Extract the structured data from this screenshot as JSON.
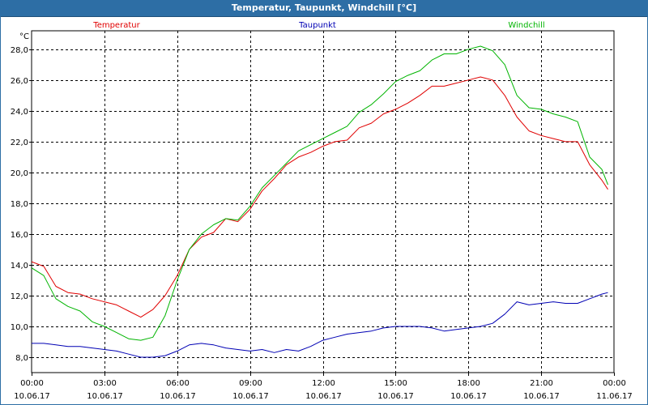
{
  "window": {
    "title": "Temperatur, Taupunkt, Windchill [°C]"
  },
  "chart_data": {
    "type": "line",
    "title": "Temperatur, Taupunkt, Windchill [°C]",
    "ylabel": "°C",
    "xlabel": "",
    "ylim": [
      7.0,
      29.2
    ],
    "xlim": [
      0,
      1440
    ],
    "grid": true,
    "y_ticks": [
      8.0,
      10.0,
      12.0,
      14.0,
      16.0,
      18.0,
      20.0,
      22.0,
      24.0,
      26.0,
      28.0
    ],
    "y_tick_labels": [
      "8,0",
      "10,0",
      "12,0",
      "14,0",
      "16,0",
      "18,0",
      "20,0",
      "22,0",
      "24,0",
      "26,0",
      "28,0"
    ],
    "x_ticks": [
      0,
      180,
      360,
      540,
      720,
      900,
      1080,
      1260,
      1440
    ],
    "x_tick_labels": [
      {
        "time": "00:00",
        "date": "10.06.17"
      },
      {
        "time": "03:00",
        "date": "10.06.17"
      },
      {
        "time": "06:00",
        "date": "10.06.17"
      },
      {
        "time": "09:00",
        "date": "10.06.17"
      },
      {
        "time": "12:00",
        "date": "10.06.17"
      },
      {
        "time": "15:00",
        "date": "10.06.17"
      },
      {
        "time": "18:00",
        "date": "10.06.17"
      },
      {
        "time": "21:00",
        "date": "10.06.17"
      },
      {
        "time": "00:00",
        "date": "11.06.17"
      }
    ],
    "series": [
      {
        "name": "Temperatur",
        "color": "#e00000",
        "x": [
          0,
          30,
          60,
          90,
          120,
          150,
          180,
          210,
          240,
          270,
          300,
          330,
          360,
          390,
          420,
          450,
          480,
          510,
          540,
          570,
          600,
          630,
          660,
          690,
          720,
          750,
          780,
          810,
          840,
          870,
          900,
          930,
          960,
          990,
          1020,
          1050,
          1080,
          1110,
          1140,
          1170,
          1200,
          1230,
          1260,
          1290,
          1320,
          1350,
          1380,
          1410,
          1425
        ],
        "values": [
          14.2,
          13.9,
          12.6,
          12.2,
          12.1,
          11.8,
          11.6,
          11.4,
          11.0,
          10.6,
          11.1,
          12.0,
          13.3,
          15.0,
          15.8,
          16.1,
          17.0,
          16.8,
          17.6,
          18.8,
          19.6,
          20.5,
          21.0,
          21.3,
          21.7,
          22.0,
          22.1,
          22.9,
          23.2,
          23.8,
          24.1,
          24.5,
          25.0,
          25.6,
          25.6,
          25.8,
          26.0,
          26.2,
          26.0,
          25.0,
          23.6,
          22.7,
          22.4,
          22.2,
          22.0,
          22.0,
          20.5,
          19.5,
          18.9
        ]
      },
      {
        "name": "Taupunkt",
        "color": "#0000b4",
        "x": [
          0,
          30,
          60,
          90,
          120,
          150,
          180,
          210,
          240,
          270,
          300,
          330,
          360,
          390,
          420,
          450,
          480,
          510,
          540,
          570,
          600,
          630,
          660,
          690,
          720,
          750,
          780,
          810,
          840,
          870,
          900,
          930,
          960,
          990,
          1020,
          1050,
          1080,
          1110,
          1140,
          1170,
          1200,
          1230,
          1260,
          1290,
          1320,
          1350,
          1380,
          1410,
          1425
        ],
        "values": [
          8.9,
          8.9,
          8.8,
          8.7,
          8.7,
          8.6,
          8.5,
          8.4,
          8.2,
          8.0,
          8.0,
          8.1,
          8.4,
          8.8,
          8.9,
          8.8,
          8.6,
          8.5,
          8.4,
          8.5,
          8.3,
          8.5,
          8.4,
          8.7,
          9.1,
          9.3,
          9.5,
          9.6,
          9.7,
          9.9,
          10.0,
          10.0,
          10.0,
          9.9,
          9.7,
          9.8,
          9.9,
          10.0,
          10.2,
          10.8,
          11.6,
          11.4,
          11.5,
          11.6,
          11.5,
          11.5,
          11.8,
          12.1,
          12.2
        ]
      },
      {
        "name": "Windchill",
        "color": "#00b400",
        "x": [
          0,
          30,
          60,
          90,
          120,
          150,
          180,
          210,
          240,
          270,
          300,
          330,
          360,
          390,
          420,
          450,
          480,
          510,
          540,
          570,
          600,
          630,
          660,
          690,
          720,
          750,
          780,
          810,
          840,
          870,
          900,
          930,
          960,
          990,
          1020,
          1050,
          1080,
          1110,
          1140,
          1170,
          1200,
          1230,
          1260,
          1290,
          1320,
          1350,
          1380,
          1410,
          1425
        ],
        "values": [
          13.8,
          13.3,
          11.8,
          11.3,
          11.0,
          10.3,
          10.0,
          9.6,
          9.2,
          9.1,
          9.3,
          10.7,
          13.0,
          15.0,
          16.0,
          16.6,
          17.0,
          16.9,
          17.8,
          19.0,
          19.8,
          20.6,
          21.4,
          21.8,
          22.2,
          22.6,
          23.0,
          23.9,
          24.4,
          25.1,
          25.9,
          26.3,
          26.6,
          27.3,
          27.7,
          27.7,
          28.0,
          28.2,
          27.9,
          27.0,
          25.0,
          24.2,
          24.1,
          23.8,
          23.6,
          23.3,
          21.0,
          20.2,
          19.2
        ]
      }
    ]
  }
}
